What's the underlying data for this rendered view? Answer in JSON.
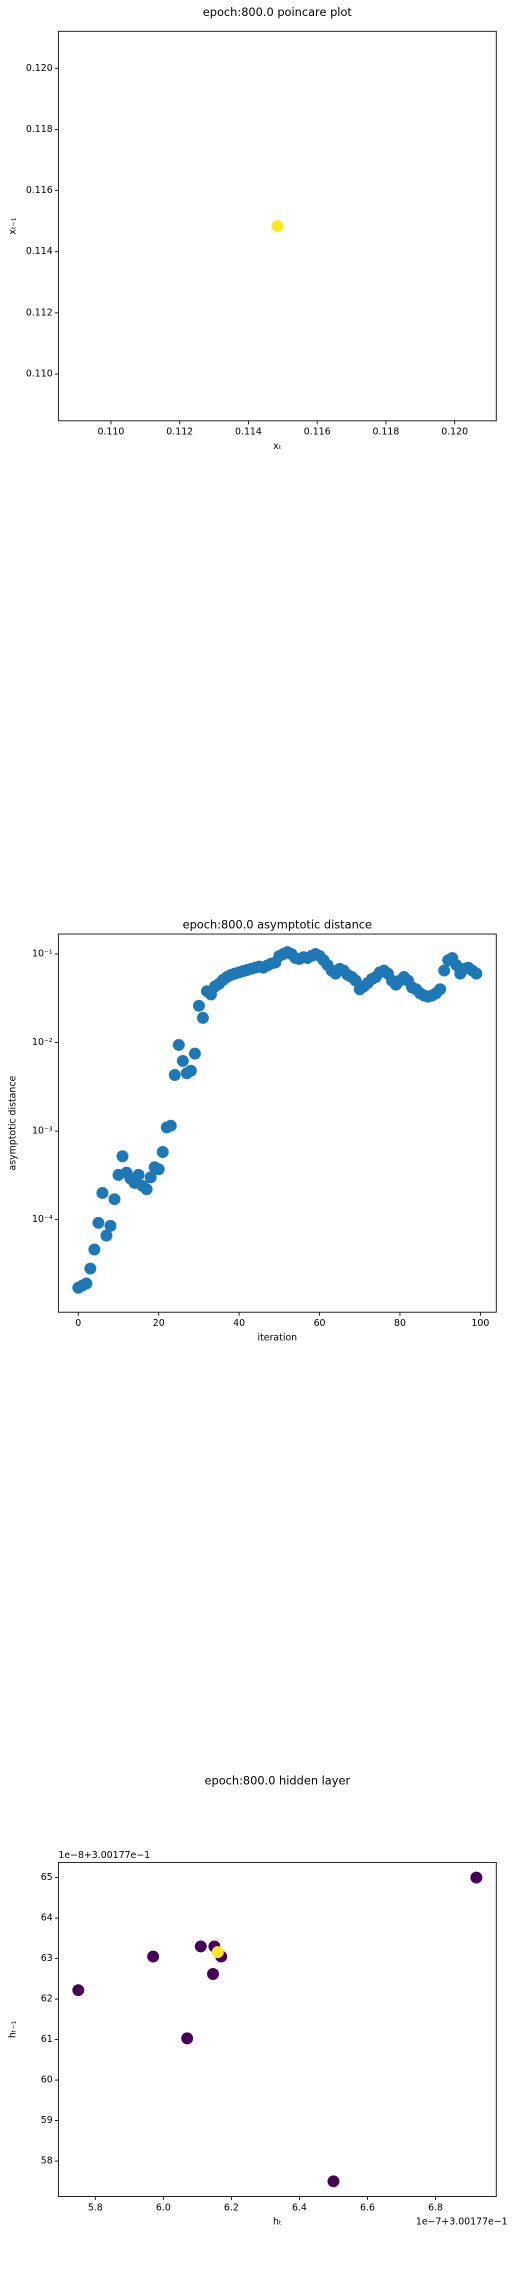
{
  "chart_data": [
    {
      "type": "scatter",
      "title": "epoch:800.0 poincare plot",
      "x_label": "xₜ",
      "y_label": "xₜ₋₁",
      "x": [
        0.11484
      ],
      "values": [
        0.11484
      ],
      "color": "#fde725",
      "xlim": [
        0.10847,
        0.12121
      ],
      "ylim": [
        0.10847,
        0.12121
      ],
      "xticks": [
        {
          "value": 0.11,
          "label": "0.110"
        },
        0.112,
        0.114,
        0.116,
        0.118,
        {
          "value": 0.12,
          "label": "0.120"
        }
      ],
      "yticks": [
        {
          "value": 0.11,
          "label": "0.110"
        },
        0.112,
        0.114,
        0.116,
        0.118,
        {
          "value": 0.12,
          "label": "0.120"
        }
      ]
    },
    {
      "type": "scatter",
      "title": "epoch:800.0 asymptotic distance",
      "x_label": "iteration",
      "y_label": "asymptotic distance",
      "log_y": true,
      "color": "#1f77b4",
      "x": [
        0,
        1,
        2,
        3,
        4,
        5,
        6,
        7,
        8,
        9,
        10,
        11,
        12,
        13,
        14,
        15,
        16,
        17,
        18,
        19,
        20,
        21,
        22,
        23,
        24,
        25,
        26,
        27,
        28,
        29,
        30,
        31,
        32,
        33,
        34,
        35,
        36,
        37,
        38,
        39,
        40,
        41,
        42,
        43,
        44,
        45,
        46,
        47,
        48,
        49,
        50,
        51,
        52,
        53,
        54,
        55,
        56,
        57,
        58,
        59,
        60,
        61,
        62,
        63,
        64,
        65,
        66,
        67,
        68,
        69,
        70,
        71,
        72,
        73,
        74,
        75,
        76,
        77,
        78,
        79,
        80,
        81,
        82,
        83,
        84,
        85,
        86,
        87,
        88,
        89,
        90,
        91,
        92,
        93,
        94,
        95,
        96,
        97,
        98,
        99
      ],
      "values": [
        1.7e-05,
        1.8e-05,
        1.9e-05,
        2.8e-05,
        4.6e-05,
        9.2e-05,
        0.0002,
        6.6e-05,
        8.5e-05,
        0.00017,
        0.00032,
        0.00052,
        0.00034,
        0.00029,
        0.00026,
        0.00032,
        0.00024,
        0.00022,
        0.0003,
        0.00039,
        0.00037,
        0.00058,
        0.0011,
        0.00115,
        0.0043,
        0.0094,
        0.0062,
        0.0045,
        0.0048,
        0.0075,
        0.026,
        0.019,
        0.038,
        0.035,
        0.043,
        0.046,
        0.051,
        0.055,
        0.058,
        0.06,
        0.062,
        0.064,
        0.066,
        0.068,
        0.07,
        0.072,
        0.07,
        0.074,
        0.078,
        0.08,
        0.095,
        0.1,
        0.105,
        0.1,
        0.09,
        0.088,
        0.092,
        0.09,
        0.095,
        0.1,
        0.095,
        0.085,
        0.075,
        0.065,
        0.06,
        0.068,
        0.065,
        0.058,
        0.055,
        0.05,
        0.04,
        0.043,
        0.047,
        0.052,
        0.055,
        0.062,
        0.065,
        0.06,
        0.05,
        0.045,
        0.05,
        0.055,
        0.05,
        0.042,
        0.04,
        0.036,
        0.034,
        0.033,
        0.034,
        0.036,
        0.04,
        0.065,
        0.085,
        0.09,
        0.075,
        0.06,
        0.068,
        0.07,
        0.065,
        0.06
      ],
      "xlim": [
        -4.95,
        103.95
      ],
      "ylim": [
        9e-06,
        0.168
      ],
      "xticks": [
        0,
        20,
        40,
        60,
        80,
        100
      ],
      "yticks": [
        {
          "value": 0.0001,
          "label": "10⁻⁴"
        },
        {
          "value": 0.001,
          "label": "10⁻³"
        },
        {
          "value": 0.01,
          "label": "10⁻²"
        },
        {
          "value": 0.1,
          "label": "10⁻¹"
        }
      ]
    },
    {
      "type": "scatter",
      "title": "epoch:800.0 hidden layer",
      "x_label": "hₜ",
      "y_label": "hₜ₋₁",
      "x_offset_text": "1e−7+3.00177e−1",
      "y_offset_text": "1e−8+3.00177e−1",
      "x": [
        5.75,
        5.97,
        6.11,
        6.15,
        6.17,
        6.146,
        6.07,
        6.92,
        6.5,
        6.16
      ],
      "values": [
        62.22,
        63.05,
        63.3,
        63.3,
        63.05,
        62.62,
        61.03,
        65.0,
        57.5,
        63.16
      ],
      "colors": [
        "#440154",
        "#440154",
        "#440154",
        "#440154",
        "#440154",
        "#440154",
        "#440154",
        "#440154",
        "#440154",
        "#fde725"
      ],
      "xlim": [
        5.6915,
        6.9785
      ],
      "ylim": [
        57.125,
        65.375
      ],
      "xticks": [
        5.8,
        {
          "value": 6.0,
          "label": "6.0"
        },
        6.2,
        6.4,
        6.6,
        6.8
      ],
      "yticks": [
        58,
        59,
        60,
        61,
        62,
        63,
        64,
        65
      ]
    }
  ]
}
